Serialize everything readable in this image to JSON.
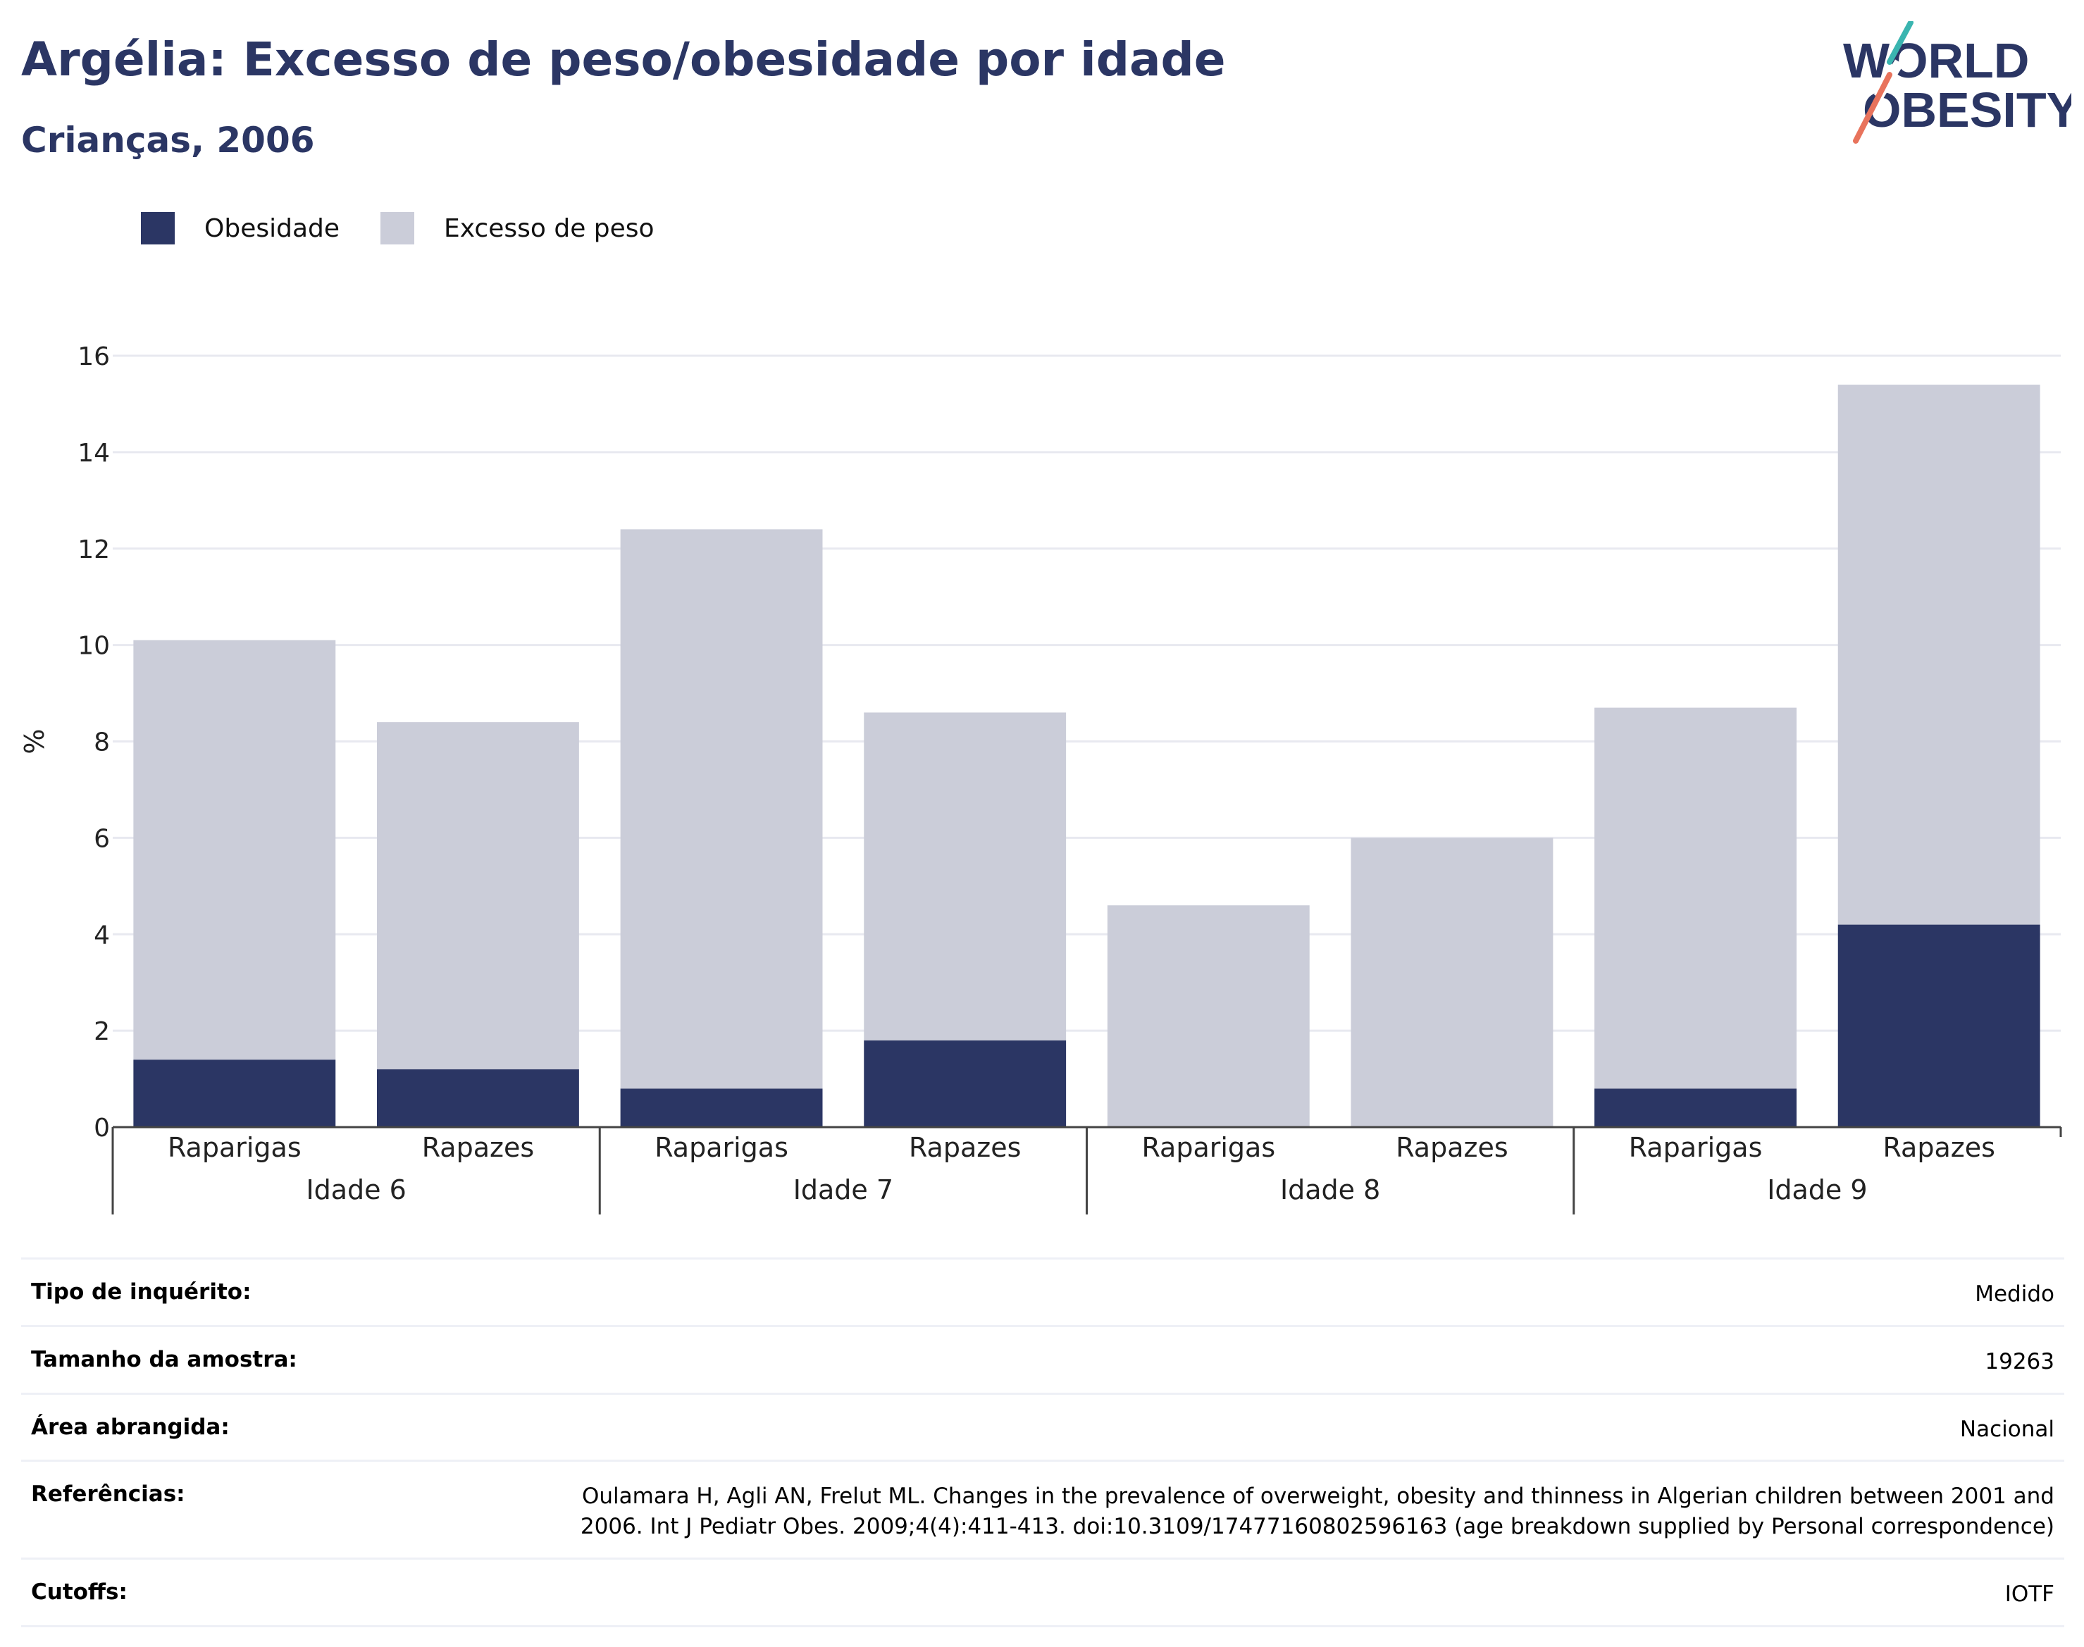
{
  "header": {
    "title": "Argélia: Excesso de peso/obesidade por idade",
    "subtitle": "Crianças, 2006"
  },
  "logo": {
    "line1": "WORLD",
    "line2": "OBESITY",
    "accent_colors": [
      "#3ab5b0",
      "#e8735c"
    ]
  },
  "legend": {
    "items": [
      {
        "label": "Obesidade",
        "color": "#2b3664"
      },
      {
        "label": "Excesso de peso",
        "color": "#cbcdd9"
      }
    ]
  },
  "chart_data": {
    "type": "bar",
    "stacked": true,
    "ylabel": "%",
    "ylim": [
      0,
      16
    ],
    "yticks": [
      0,
      2,
      4,
      6,
      8,
      10,
      12,
      14,
      16
    ],
    "grid": true,
    "legend_position": "top-left",
    "groups": [
      "Idade 6",
      "Idade 7",
      "Idade 8",
      "Idade 9"
    ],
    "categories": [
      "Raparigas",
      "Rapazes",
      "Raparigas",
      "Rapazes",
      "Raparigas",
      "Rapazes",
      "Raparigas",
      "Rapazes"
    ],
    "series": [
      {
        "name": "Obesidade",
        "color": "#2b3664",
        "values": [
          1.4,
          1.2,
          0.8,
          1.8,
          0,
          0,
          0.8,
          4.2
        ]
      },
      {
        "name": "Excesso de peso",
        "color": "#cbcdd9",
        "values": [
          8.7,
          7.2,
          11.6,
          6.8,
          4.6,
          6.0,
          7.9,
          11.2
        ]
      }
    ]
  },
  "info": {
    "rows": [
      {
        "label": "Tipo de inquérito:",
        "value": "Medido"
      },
      {
        "label": "Tamanho da amostra:",
        "value": "19263"
      },
      {
        "label": "Área abrangida:",
        "value": "Nacional"
      },
      {
        "label": "Referências:",
        "value": "Oulamara H, Agli AN, Frelut ML. Changes in the prevalence of overweight, obesity and thinness in Algerian children between 2001 and 2006. Int J Pediatr Obes. 2009;4(4):411-413. doi:10.3109/17477160802596163 (age breakdown supplied by Personal correspondence)"
      },
      {
        "label": "Cutoffs:",
        "value": "IOTF"
      }
    ]
  }
}
